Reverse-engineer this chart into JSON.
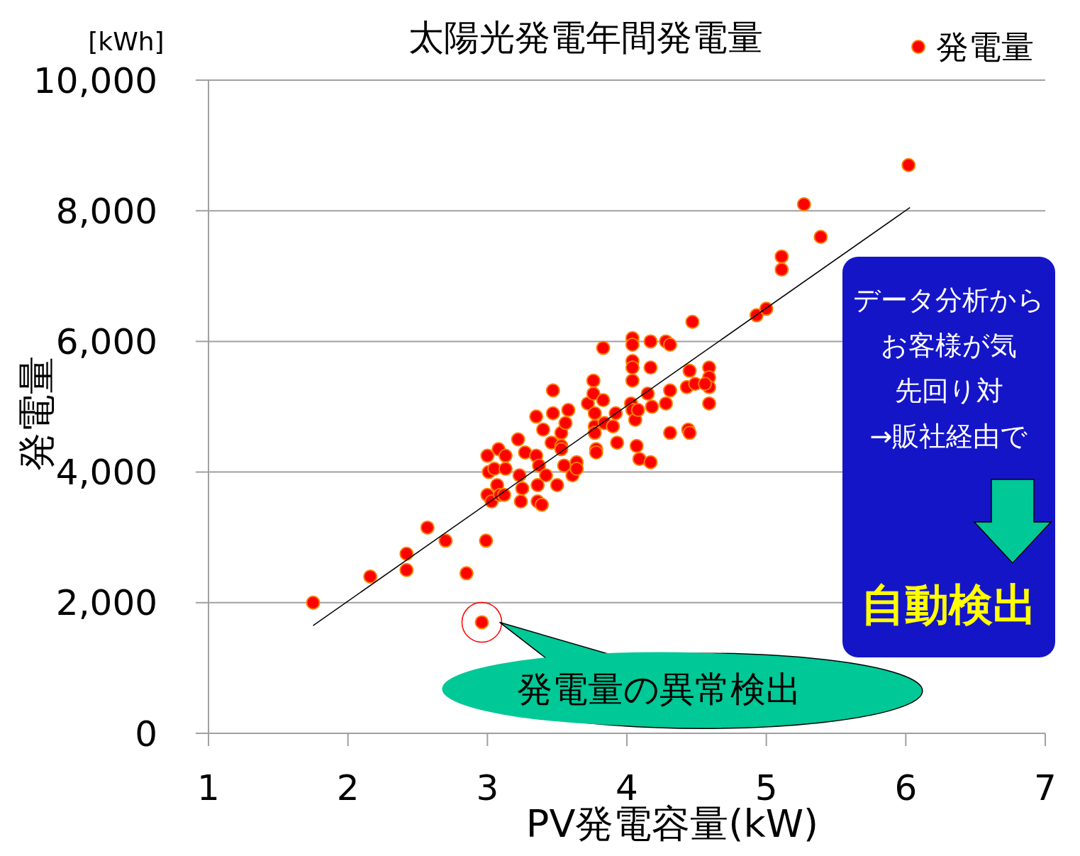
{
  "chart_data": {
    "type": "scatter",
    "title": "太陽光発電年間発電量",
    "xlabel": "PV発電容量(kW)",
    "ylabel": "発電量",
    "xlim": [
      1,
      7
    ],
    "xticks": [
      1,
      2,
      3,
      4,
      5,
      6,
      7
    ],
    "ylim": [
      0,
      10000
    ],
    "yticks": [
      {
        "value": 0,
        "label": "0"
      },
      {
        "value": 2000,
        "label": "2,000"
      },
      {
        "value": 4000,
        "label": "4,000"
      },
      {
        "value": 6000,
        "label": "6,000"
      },
      {
        "value": 8000,
        "label": "8,000"
      },
      {
        "value": 10000,
        "label": "10,000"
      }
    ],
    "grid": "y",
    "legend": "top right",
    "marker": "circle",
    "annotations": [
      "[kWh]",
      {
        "text": "発電量の異常検出",
        "x": 2.96,
        "y": 1700
      },
      "データ分析から",
      "お客様が気",
      "先回り対",
      "→販社経由で",
      "自動検出"
    ],
    "series": [
      {
        "name": "発電量",
        "color": "#ff0000",
        "x": [
          1.75,
          2.16,
          2.42,
          2.42,
          2.57,
          2.7,
          2.85,
          2.99,
          2.96,
          3.0,
          3.01,
          3.0,
          3.03,
          3.07,
          3.08,
          3.05,
          3.09,
          3.13,
          3.13,
          3.12,
          3.22,
          3.23,
          3.24,
          3.27,
          3.25,
          3.35,
          3.35,
          3.37,
          3.36,
          3.36,
          3.39,
          3.4,
          3.42,
          3.47,
          3.47,
          3.46,
          3.5,
          3.53,
          3.53,
          3.53,
          3.55,
          3.56,
          3.58,
          3.61,
          3.64,
          3.64,
          3.72,
          3.76,
          3.76,
          3.77,
          3.77,
          3.77,
          3.78,
          3.78,
          3.83,
          3.83,
          3.84,
          3.9,
          3.92,
          3.93,
          4.04,
          4.04,
          4.04,
          4.04,
          4.04,
          4.03,
          4.04,
          4.06,
          4.07,
          4.09,
          4.08,
          4.17,
          4.17,
          4.15,
          4.18,
          4.17,
          4.28,
          4.31,
          4.31,
          4.28,
          4.31,
          4.47,
          4.45,
          4.43,
          4.49,
          4.44,
          4.45,
          4.59,
          4.59,
          4.59,
          4.59,
          4.56,
          4.93,
          5.0,
          5.11,
          5.11,
          5.27,
          5.39,
          6.02
        ],
        "values": [
          2000,
          2400,
          2750,
          2500,
          3150,
          2950,
          2450,
          2950,
          1700,
          4250,
          4000,
          3650,
          3550,
          3800,
          4350,
          4050,
          3650,
          4250,
          4050,
          3650,
          4500,
          3950,
          3550,
          4300,
          3750,
          4850,
          4250,
          4100,
          3800,
          3550,
          3500,
          4650,
          3950,
          5250,
          4900,
          4450,
          3800,
          4600,
          4400,
          4350,
          4100,
          4750,
          4950,
          3950,
          4150,
          4050,
          5050,
          5400,
          5200,
          4900,
          4700,
          4600,
          4350,
          4300,
          5900,
          5100,
          4750,
          4700,
          4900,
          4450,
          6050,
          5950,
          5700,
          5600,
          5400,
          5050,
          4950,
          4800,
          4400,
          4200,
          4950,
          6000,
          5600,
          5200,
          5000,
          4150,
          6000,
          5950,
          5250,
          5050,
          4600,
          6300,
          5550,
          5300,
          5350,
          4650,
          4600,
          5600,
          5450,
          5300,
          5050,
          5350,
          6400,
          6500,
          7300,
          7100,
          8100,
          7600,
          8700
        ]
      },
      {
        "type": "line",
        "color": "#000000",
        "marker": "none",
        "x": [
          1.75,
          6.03
        ],
        "values": [
          1650,
          8050
        ]
      }
    ]
  }
}
